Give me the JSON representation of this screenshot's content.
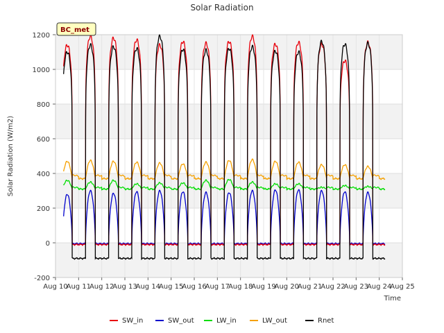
{
  "chart_data": {
    "type": "line",
    "title": "Solar Radiation",
    "xlabel": "Time",
    "ylabel": "Solar Radiation (W/m2)",
    "site_label": "BC_met",
    "xlim": [
      10,
      25
    ],
    "ylim": [
      -200,
      1200
    ],
    "x_ticks": [
      {
        "value": 10,
        "label": "Aug 10"
      },
      {
        "value": 11,
        "label": "Aug 11"
      },
      {
        "value": 12,
        "label": "Aug 12"
      },
      {
        "value": 13,
        "label": "Aug 13"
      },
      {
        "value": 14,
        "label": "Aug 14"
      },
      {
        "value": 15,
        "label": "Aug 15"
      },
      {
        "value": 16,
        "label": "Aug 16"
      },
      {
        "value": 17,
        "label": "Aug 17"
      },
      {
        "value": 18,
        "label": "Aug 18"
      },
      {
        "value": 19,
        "label": "Aug 19"
      },
      {
        "value": 20,
        "label": "Aug 20"
      },
      {
        "value": 21,
        "label": "Aug 21"
      },
      {
        "value": 22,
        "label": "Aug 22"
      },
      {
        "value": 23,
        "label": "Aug 23"
      },
      {
        "value": 24,
        "label": "Aug 24"
      },
      {
        "value": 25,
        "label": "Aug 25"
      }
    ],
    "y_ticks": [
      -200,
      0,
      200,
      400,
      600,
      800,
      1000,
      1200
    ],
    "grid": true,
    "legend_position": "bottom",
    "data_start": 10.35,
    "data_end": 24.25,
    "series": [
      {
        "name": "SW_in",
        "color": "#e8000b",
        "night": -10,
        "day_start": 0.3,
        "day_end": 0.72,
        "daily_peak": [
          1140,
          1190,
          1180,
          1170,
          1140,
          1160,
          1150,
          1160,
          1190,
          1145,
          1155,
          1145,
          1050,
          1155,
          1160
        ]
      },
      {
        "name": "SW_out",
        "color": "#0000cc",
        "night": -5,
        "day_start": 0.3,
        "day_end": 0.72,
        "daily_peak": [
          280,
          300,
          285,
          295,
          300,
          295,
          290,
          290,
          300,
          305,
          305,
          300,
          295,
          290,
          295
        ]
      },
      {
        "name": "LW_in",
        "color": "#00dd00",
        "night": 310,
        "day_start": 0.3,
        "day_end": 0.72,
        "daily_peak": [
          360,
          350,
          360,
          340,
          345,
          345,
          360,
          365,
          350,
          340,
          340,
          320,
          330,
          325,
          320
        ]
      },
      {
        "name": "LW_out",
        "color": "#f5a000",
        "night": 370,
        "day_start": 0.3,
        "day_end": 0.72,
        "daily_peak": [
          470,
          475,
          470,
          465,
          460,
          455,
          465,
          475,
          480,
          470,
          465,
          450,
          450,
          440,
          440
        ]
      },
      {
        "name": "Rnet",
        "color": "#000000",
        "night": -90,
        "day_start": 0.3,
        "day_end": 0.72,
        "daily_peak": [
          1100,
          1140,
          1130,
          1120,
          1190,
          1115,
          1110,
          1120,
          1130,
          1105,
          1100,
          1160,
          1145,
          1150,
          1145
        ]
      }
    ]
  }
}
